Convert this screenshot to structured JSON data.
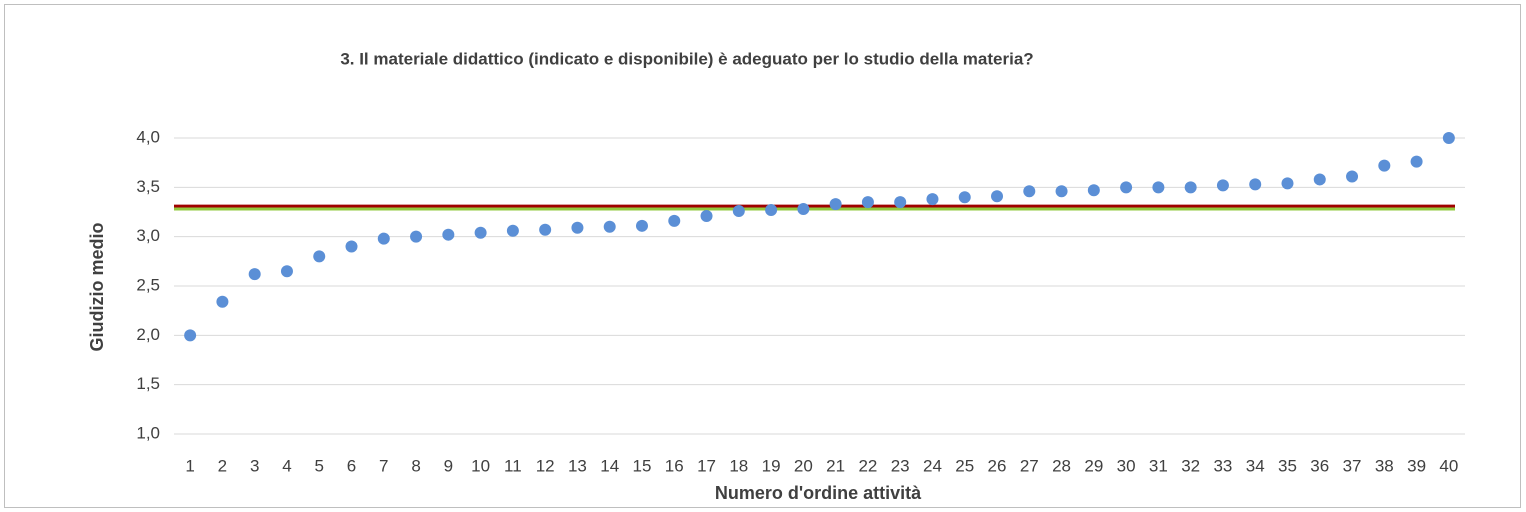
{
  "chart_data": {
    "type": "scatter",
    "title": "3. Il materiale didattico (indicato e disponibile) è adeguato per lo studio della materia?",
    "x_label": "Numero d'ordine attività",
    "y_label": "Giudizio medio",
    "categories": [
      "1",
      "2",
      "3",
      "4",
      "5",
      "6",
      "7",
      "8",
      "9",
      "10",
      "11",
      "12",
      "13",
      "14",
      "15",
      "16",
      "17",
      "18",
      "19",
      "20",
      "21",
      "22",
      "23",
      "24",
      "25",
      "26",
      "27",
      "28",
      "29",
      "30",
      "31",
      "32",
      "33",
      "34",
      "35",
      "36",
      "37",
      "38",
      "39",
      "40"
    ],
    "series": [
      {
        "color": "#5b8fd6",
        "values": [
          2.0,
          2.34,
          2.62,
          2.65,
          2.8,
          2.9,
          2.98,
          3.0,
          3.02,
          3.04,
          3.06,
          3.07,
          3.09,
          3.1,
          3.11,
          3.16,
          3.21,
          3.26,
          3.27,
          3.28,
          3.33,
          3.35,
          3.35,
          3.38,
          3.4,
          3.41,
          3.46,
          3.46,
          3.47,
          3.5,
          3.5,
          3.5,
          3.52,
          3.53,
          3.54,
          3.58,
          3.61,
          3.72,
          3.76,
          4.0
        ]
      }
    ],
    "hlines": [
      {
        "value": 3.31,
        "color": "#a00000"
      },
      {
        "value": 3.28,
        "color": "#92c83e"
      }
    ],
    "ylim": [
      1,
      4
    ],
    "yticks": [
      {
        "value": 1,
        "label": "1,0"
      },
      {
        "value": 1.5,
        "label": "1,5"
      },
      {
        "value": 2,
        "label": "2,0"
      },
      {
        "value": 2.5,
        "label": "2,5"
      },
      {
        "value": 3,
        "label": "3,0"
      },
      {
        "value": 3.5,
        "label": "3,5"
      },
      {
        "value": 4,
        "label": "4,0"
      }
    ],
    "grid": true
  }
}
